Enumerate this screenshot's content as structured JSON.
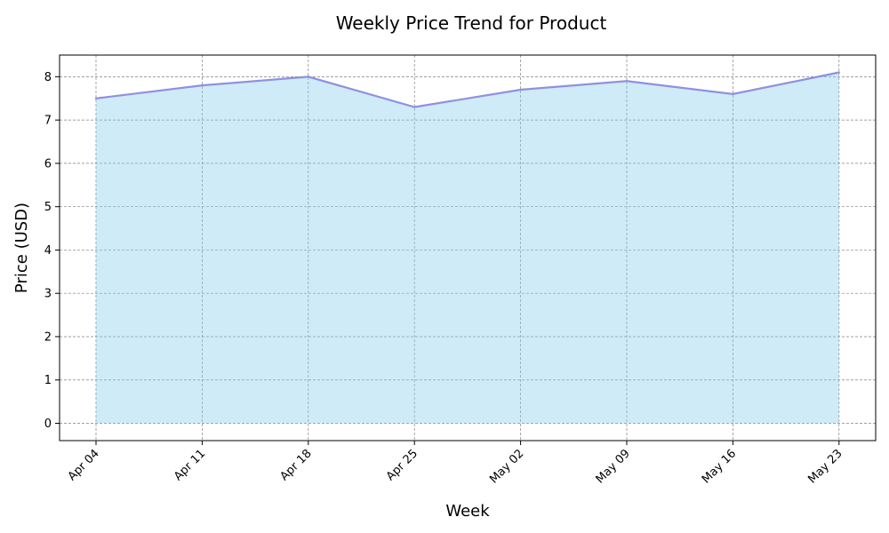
{
  "chart_data": {
    "type": "area",
    "title": "Weekly Price Trend for Product",
    "xlabel": "Week",
    "ylabel": "Price (USD)",
    "categories": [
      "Apr 04",
      "Apr 11",
      "Apr 18",
      "Apr 25",
      "May 02",
      "May 09",
      "May 16",
      "May 23"
    ],
    "values": [
      7.5,
      7.8,
      8.0,
      7.3,
      7.7,
      7.9,
      7.6,
      8.1
    ],
    "yticks": [
      0,
      1,
      2,
      3,
      4,
      5,
      6,
      7,
      8
    ],
    "ylim": [
      -0.4,
      8.5
    ],
    "grid": true,
    "colors": {
      "fill": "#87ceeb",
      "line": "#9090e0",
      "grid": "#808080"
    }
  }
}
